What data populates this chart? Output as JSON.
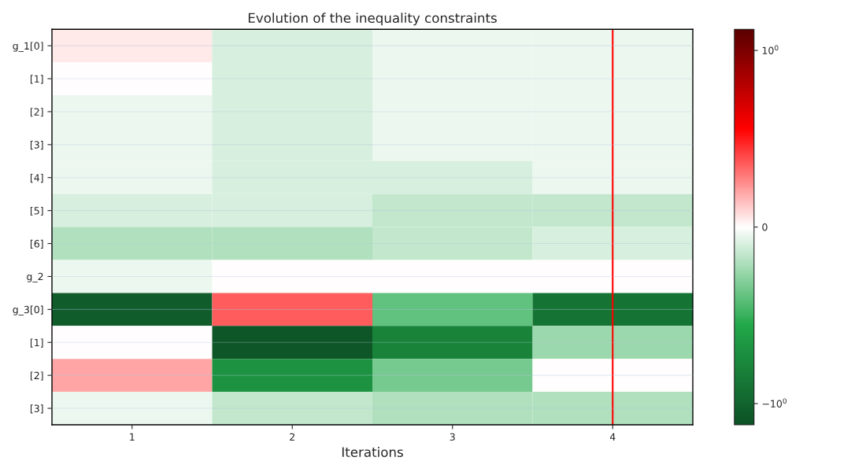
{
  "chart_data": {
    "type": "heatmap",
    "title": "Evolution of the inequality constraints",
    "xlabel": "Iterations",
    "categories": [
      "1",
      "2",
      "3",
      "4"
    ],
    "y_categories": [
      "g_1[0]",
      "[1]",
      "[2]",
      "[3]",
      "[4]",
      "[5]",
      "[6]",
      "g_2",
      "g_3[0]",
      "[1]",
      "[2]",
      "[3]"
    ],
    "cells": [
      [
        0.05,
        -0.1,
        -0.05,
        -0.05
      ],
      [
        0,
        -0.1,
        -0.05,
        -0.05
      ],
      [
        -0.05,
        -0.1,
        -0.05,
        -0.05
      ],
      [
        -0.05,
        -0.1,
        -0.05,
        -0.05
      ],
      [
        -0.05,
        -0.1,
        -0.1,
        -0.05
      ],
      [
        -0.1,
        -0.1,
        -0.15,
        -0.15
      ],
      [
        -0.2,
        -0.2,
        -0.15,
        -0.1
      ],
      [
        -0.05,
        0,
        0,
        0
      ],
      [
        -1.05,
        0.35,
        -0.4,
        -0.9
      ],
      [
        0,
        -1.1,
        -0.8,
        -0.25
      ],
      [
        0.2,
        -0.7,
        -0.35,
        0
      ],
      [
        -0.05,
        -0.15,
        -0.2,
        -0.2
      ]
    ],
    "clim": [
      -1.12,
      1.12
    ],
    "cticks": [
      {
        "value": 1,
        "label": "10$^{0}$"
      },
      0,
      {
        "value": -1,
        "label": "−10$^{0}$"
      }
    ],
    "ref_lines": [
      {
        "axis": "x",
        "value": "4",
        "color": "#ff0000"
      }
    ],
    "grid": "y"
  }
}
